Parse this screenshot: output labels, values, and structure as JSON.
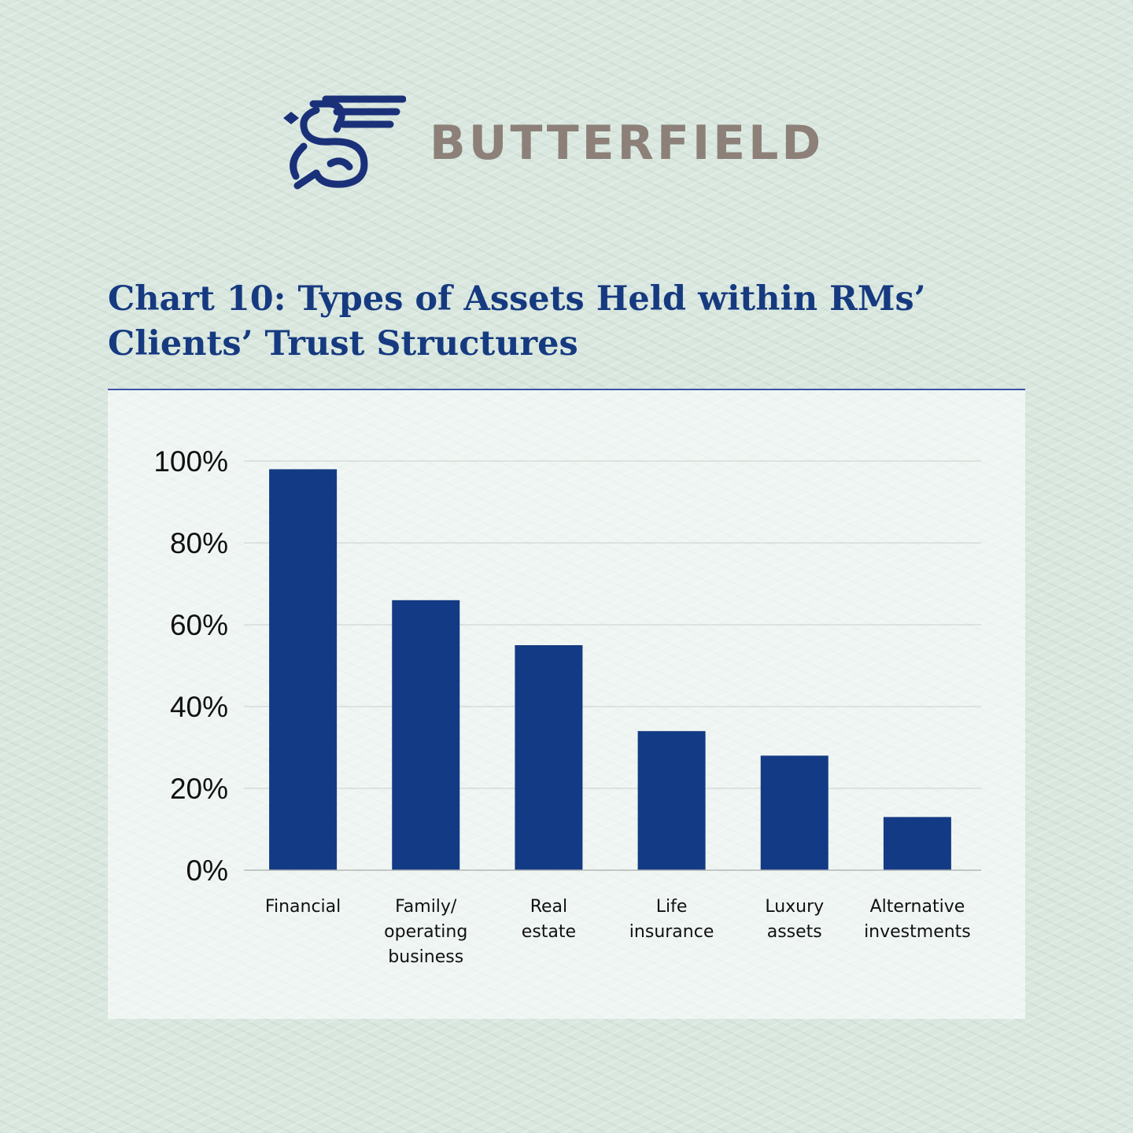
{
  "brand": {
    "name": "BUTTERFIELD",
    "logo_icon": "griffin-icon",
    "mark_color": "#1a3079",
    "word_color": "#8c8079"
  },
  "title": {
    "line1": "Chart 10: Types of Assets Held within RMs’",
    "line2": "Clients’ Trust Structures"
  },
  "chart_data": {
    "type": "bar",
    "categories": [
      [
        "Financial"
      ],
      [
        "Family/",
        "operating",
        "business"
      ],
      [
        "Real",
        "estate"
      ],
      [
        "Life",
        "insurance"
      ],
      [
        "Luxury",
        "assets"
      ],
      [
        "Alternative",
        "investments"
      ]
    ],
    "values": [
      98,
      66,
      55,
      34,
      28,
      13
    ],
    "y_ticks": [
      "0%",
      "20%",
      "40%",
      "60%",
      "80%",
      "100%"
    ],
    "ylim": [
      0,
      100
    ],
    "grid": true,
    "bar_color": "#133a84"
  }
}
